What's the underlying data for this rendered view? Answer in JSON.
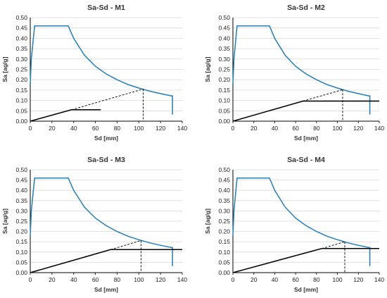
{
  "colors": {
    "spectrum": "#1f7fbf",
    "bilinear": "#000000",
    "axis": "#000000",
    "grid": "#d9d9d9",
    "text": "#222222"
  },
  "chart_data": [
    {
      "type": "line",
      "title": "Sa-Sd - M1",
      "xlabel": "Sd [mm]",
      "ylabel": "Sa [ag/g]",
      "xlim": [
        0,
        140
      ],
      "ylim": [
        0,
        0.5
      ],
      "xticks": [
        0,
        20,
        40,
        60,
        80,
        100,
        120,
        140
      ],
      "yticks": [
        0.0,
        0.05,
        0.1,
        0.15,
        0.2,
        0.25,
        0.3,
        0.35,
        0.4,
        0.45,
        0.5
      ],
      "ytick_labels": [
        "0.00",
        "0.05",
        "0.10",
        "0.15",
        "0.20",
        "0.25",
        "0.30",
        "0.35",
        "0.40",
        "0.45",
        "0.50"
      ],
      "grid": true,
      "series": [
        {
          "style": "spectrum",
          "points": [
            [
              0,
              0.18
            ],
            [
              1,
              0.3
            ],
            [
              4,
              0.46
            ],
            [
              35,
              0.46
            ],
            [
              40,
              0.4
            ],
            [
              50,
              0.318
            ],
            [
              60,
              0.265
            ],
            [
              70,
              0.228
            ],
            [
              80,
              0.2
            ],
            [
              90,
              0.177
            ],
            [
              100,
              0.16
            ],
            [
              110,
              0.145
            ],
            [
              120,
              0.133
            ],
            [
              130,
              0.122
            ],
            [
              131,
              0.122
            ],
            [
              131,
              0.032
            ]
          ]
        },
        {
          "style": "bilinear",
          "points": [
            [
              0,
              0
            ],
            [
              38,
              0.055
            ],
            [
              65,
              0.055
            ]
          ]
        },
        {
          "style": "dashed",
          "points": [
            [
              38,
              0.055
            ],
            [
              104,
              0.155
            ]
          ]
        },
        {
          "style": "dashed",
          "points": [
            [
              104,
              0.155
            ],
            [
              104,
              0
            ]
          ]
        }
      ]
    },
    {
      "type": "line",
      "title": "Sa-Sd - M2",
      "xlabel": "Sd [mm]",
      "ylabel": "Sa [ag/g]",
      "xlim": [
        0,
        140
      ],
      "ylim": [
        0,
        0.5
      ],
      "xticks": [
        0,
        20,
        40,
        60,
        80,
        100,
        120,
        140
      ],
      "yticks": [
        0.0,
        0.05,
        0.1,
        0.15,
        0.2,
        0.25,
        0.3,
        0.35,
        0.4,
        0.45,
        0.5
      ],
      "ytick_labels": [
        "0.00",
        "0.05",
        "0.10",
        "0.15",
        "0.20",
        "0.25",
        "0.30",
        "0.35",
        "0.40",
        "0.45",
        "0.50"
      ],
      "grid": true,
      "series": [
        {
          "style": "spectrum",
          "points": [
            [
              0,
              0.18
            ],
            [
              1,
              0.3
            ],
            [
              4,
              0.46
            ],
            [
              35,
              0.46
            ],
            [
              40,
              0.4
            ],
            [
              50,
              0.318
            ],
            [
              60,
              0.265
            ],
            [
              70,
              0.228
            ],
            [
              80,
              0.2
            ],
            [
              90,
              0.177
            ],
            [
              100,
              0.16
            ],
            [
              110,
              0.145
            ],
            [
              120,
              0.133
            ],
            [
              130,
              0.122
            ],
            [
              131,
              0.122
            ],
            [
              131,
              0.032
            ]
          ]
        },
        {
          "style": "bilinear",
          "points": [
            [
              0,
              0
            ],
            [
              67,
              0.097
            ],
            [
              140,
              0.097
            ]
          ]
        },
        {
          "style": "dashed",
          "points": [
            [
              67,
              0.097
            ],
            [
              105,
              0.152
            ]
          ]
        },
        {
          "style": "dashed",
          "points": [
            [
              105,
              0.152
            ],
            [
              105,
              0
            ]
          ]
        }
      ]
    },
    {
      "type": "line",
      "title": "Sa-Sd - M3",
      "xlabel": "Sd [mm]",
      "ylabel": "Sa [ag/g]",
      "xlim": [
        0,
        140
      ],
      "ylim": [
        0,
        0.5
      ],
      "xticks": [
        0,
        20,
        40,
        60,
        80,
        100,
        120,
        140
      ],
      "yticks": [
        0.0,
        0.05,
        0.1,
        0.15,
        0.2,
        0.25,
        0.3,
        0.35,
        0.4,
        0.45,
        0.5
      ],
      "ytick_labels": [
        "0.00",
        "0.05",
        "0.10",
        "0.15",
        "0.20",
        "0.25",
        "0.30",
        "0.35",
        "0.40",
        "0.45",
        "0.50"
      ],
      "grid": true,
      "series": [
        {
          "style": "spectrum",
          "points": [
            [
              0,
              0.18
            ],
            [
              1,
              0.3
            ],
            [
              4,
              0.46
            ],
            [
              35,
              0.46
            ],
            [
              40,
              0.4
            ],
            [
              50,
              0.318
            ],
            [
              60,
              0.265
            ],
            [
              70,
              0.228
            ],
            [
              80,
              0.2
            ],
            [
              90,
              0.177
            ],
            [
              100,
              0.16
            ],
            [
              110,
              0.145
            ],
            [
              120,
              0.133
            ],
            [
              130,
              0.122
            ],
            [
              131,
              0.122
            ],
            [
              131,
              0.032
            ]
          ]
        },
        {
          "style": "bilinear",
          "points": [
            [
              0,
              0
            ],
            [
              74,
              0.112
            ],
            [
              140,
              0.112
            ]
          ]
        },
        {
          "style": "dashed",
          "points": [
            [
              74,
              0.112
            ],
            [
              102,
              0.156
            ]
          ]
        },
        {
          "style": "dashed",
          "points": [
            [
              102,
              0.156
            ],
            [
              102,
              0
            ]
          ]
        }
      ]
    },
    {
      "type": "line",
      "title": "Sa-Sd - M4",
      "xlabel": "Sd [mm]",
      "ylabel": "Sa [ag/g]",
      "xlim": [
        0,
        140
      ],
      "ylim": [
        0,
        0.5
      ],
      "xticks": [
        0,
        20,
        40,
        60,
        80,
        100,
        120,
        140
      ],
      "yticks": [
        0.0,
        0.05,
        0.1,
        0.15,
        0.2,
        0.25,
        0.3,
        0.35,
        0.4,
        0.45,
        0.5
      ],
      "ytick_labels": [
        "0.00",
        "0.05",
        "0.10",
        "0.15",
        "0.20",
        "0.25",
        "0.30",
        "0.35",
        "0.40",
        "0.45",
        "0.50"
      ],
      "grid": true,
      "series": [
        {
          "style": "spectrum",
          "points": [
            [
              0,
              0.18
            ],
            [
              1,
              0.3
            ],
            [
              4,
              0.46
            ],
            [
              35,
              0.46
            ],
            [
              40,
              0.4
            ],
            [
              50,
              0.318
            ],
            [
              60,
              0.265
            ],
            [
              70,
              0.228
            ],
            [
              80,
              0.2
            ],
            [
              90,
              0.177
            ],
            [
              100,
              0.16
            ],
            [
              110,
              0.145
            ],
            [
              120,
              0.133
            ],
            [
              130,
              0.122
            ],
            [
              131,
              0.122
            ],
            [
              131,
              0.032
            ]
          ]
        },
        {
          "style": "bilinear",
          "points": [
            [
              0,
              0
            ],
            [
              85,
              0.117
            ],
            [
              140,
              0.117
            ]
          ]
        },
        {
          "style": "dashed",
          "points": [
            [
              85,
              0.117
            ],
            [
              107,
              0.15
            ]
          ]
        },
        {
          "style": "dashed",
          "points": [
            [
              107,
              0.15
            ],
            [
              107,
              0
            ]
          ]
        }
      ]
    }
  ]
}
